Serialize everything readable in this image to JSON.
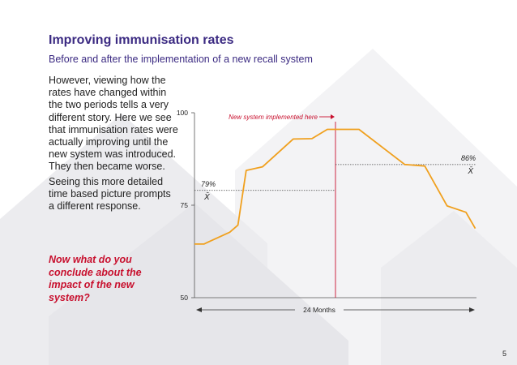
{
  "header": {
    "title": "Improving immunisation rates",
    "subtitle": "Before and after the implementation of a new recall system"
  },
  "body": {
    "paragraph1": "However, viewing how the rates have changed within the two periods tells a very different story. Here we see that immunisation rates were actually improving until the new system was introduced. They then became worse.",
    "paragraph2": "Seeing this more detailed time based picture prompts a different response.",
    "question": "Now what do you conclude about the impact of the new system?"
  },
  "footer": {
    "page_number": "5"
  },
  "colors": {
    "title": "#3b2a82",
    "line": "#f0a01e",
    "accent_red": "#c8102e",
    "text": "#222222",
    "background_shapes": "#e9e9ec"
  },
  "chart_data": {
    "type": "line",
    "title": "",
    "xlabel": "24 Months",
    "ylabel": "",
    "yticks": [
      50,
      75,
      100
    ],
    "ylim": [
      50,
      100
    ],
    "xlim": [
      0,
      24
    ],
    "grid": false,
    "series": [
      {
        "x": [
          0,
          0.8,
          3,
          3.7,
          4.4,
          5.8,
          8.4,
          10,
          11.3,
          14,
          17.9,
          19.6,
          21.5,
          23.1,
          23.9
        ],
        "values": [
          64.5,
          64.5,
          67.7,
          69.6,
          84.4,
          85.4,
          92.9,
          93.0,
          95.5,
          95.5,
          86.0,
          85.6,
          74.8,
          73.1,
          68.7
        ]
      }
    ],
    "intervention": {
      "x": 12,
      "label": "New system implemented here"
    },
    "means": [
      {
        "label": "79%",
        "symbol": "X̄",
        "value": 79,
        "x_range": [
          0,
          12
        ]
      },
      {
        "label": "86%",
        "symbol": "X̄",
        "value": 86,
        "x_range": [
          12,
          24
        ]
      }
    ]
  }
}
